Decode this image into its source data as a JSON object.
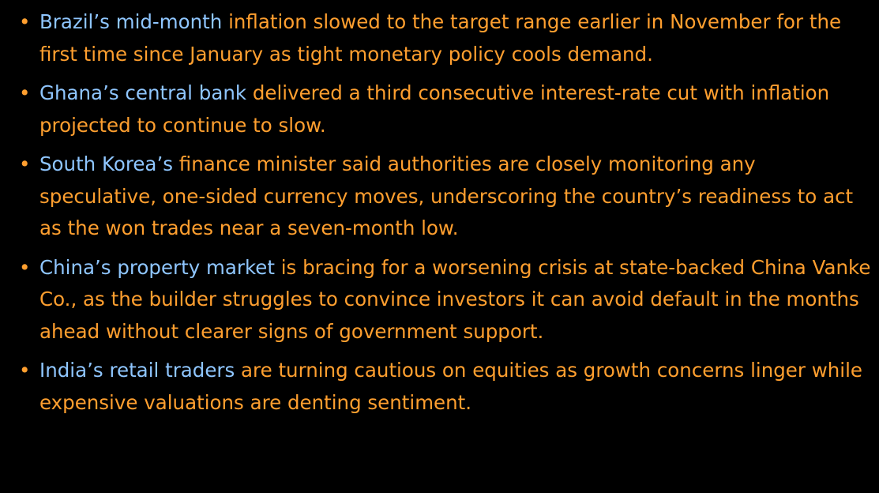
{
  "items": [
    {
      "link": "Brazil’s mid-month",
      "text": "inflation slowed to the target range earlier in November for the first time since January as tight monetary policy cools demand."
    },
    {
      "link": "Ghana’s central bank",
      "text": "delivered a third consecutive interest-rate cut with inflation projected to continue to slow."
    },
    {
      "link": "South Korea’s",
      "text": "finance minister said authorities are closely monitoring any speculative, one-sided currency moves, underscoring the country’s readiness to act as the won trades near a seven-month low."
    },
    {
      "link": "China’s property market",
      "text": "is bracing for a worsening crisis at state-backed China Vanke Co., as the builder struggles to convince investors it can avoid default in the months ahead without clearer signs of government support."
    },
    {
      "link": "India’s retail traders",
      "text": "are turning cautious on equities as growth concerns linger while expensive valuations are denting sentiment."
    }
  ]
}
